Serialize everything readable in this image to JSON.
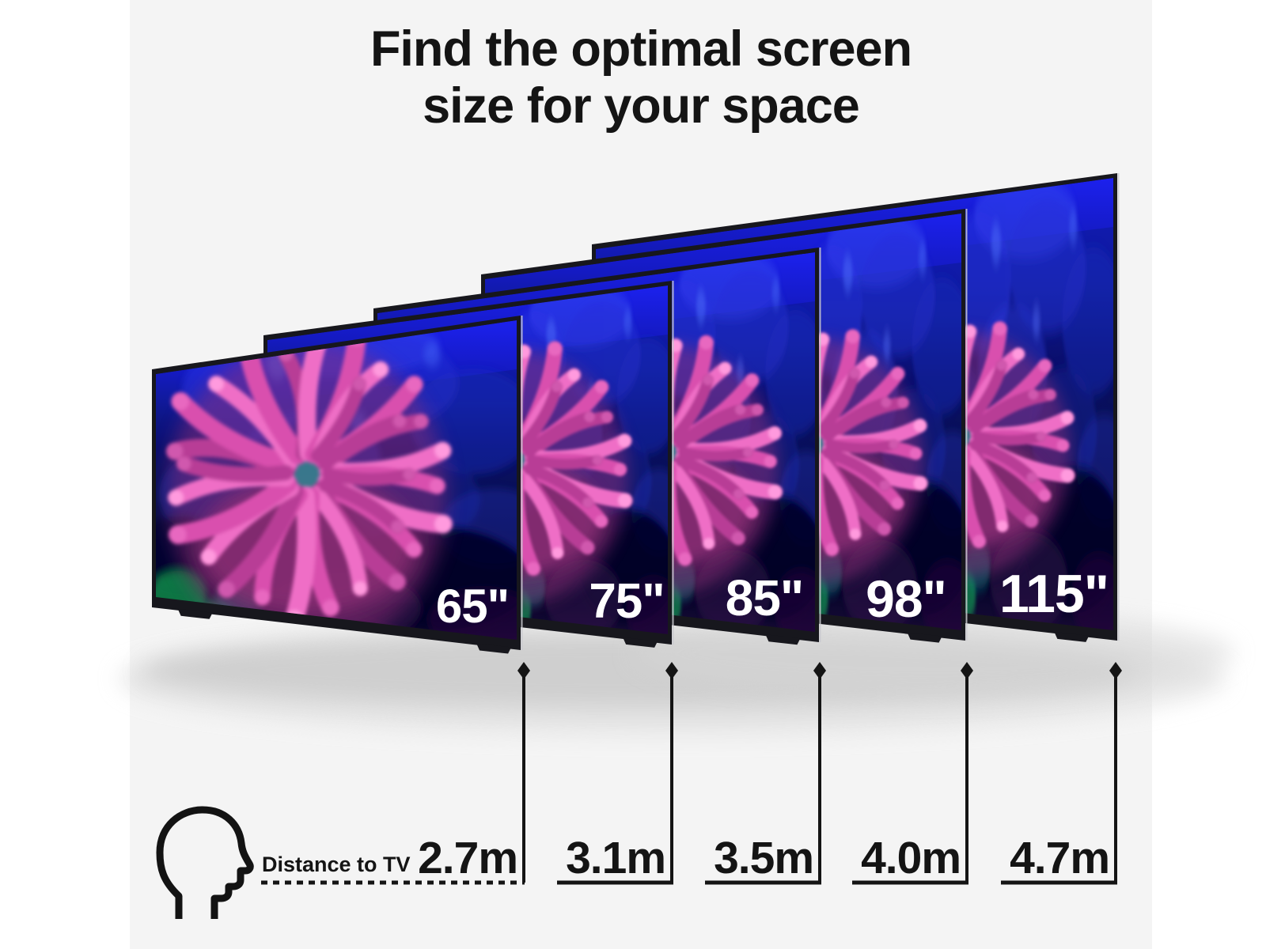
{
  "title": {
    "line1": "Find the optimal screen",
    "line2": "size for your space"
  },
  "legend": {
    "distance_label": "Distance to TV"
  },
  "tvs": [
    {
      "size": "65\"",
      "distance": "2.7m"
    },
    {
      "size": "75\"",
      "distance": "3.1m"
    },
    {
      "size": "85\"",
      "distance": "3.5m"
    },
    {
      "size": "98\"",
      "distance": "4.0m"
    },
    {
      "size": "115\"",
      "distance": "4.7m"
    }
  ],
  "icons": {
    "head": "head-profile-icon",
    "marker": "diamond-marker"
  },
  "colors": {
    "background": "#f4f4f4",
    "page_margin": "#ffffff",
    "text": "#141414",
    "tv_label": "#ffffff",
    "measure_line": "#141414",
    "bezel": "#17171d",
    "screen_top_blue": "#1b20ea",
    "screen_deep_blue": "#0d11a6",
    "anemone_pink": "#ef6ec6",
    "accent_green": "#12c85e"
  }
}
